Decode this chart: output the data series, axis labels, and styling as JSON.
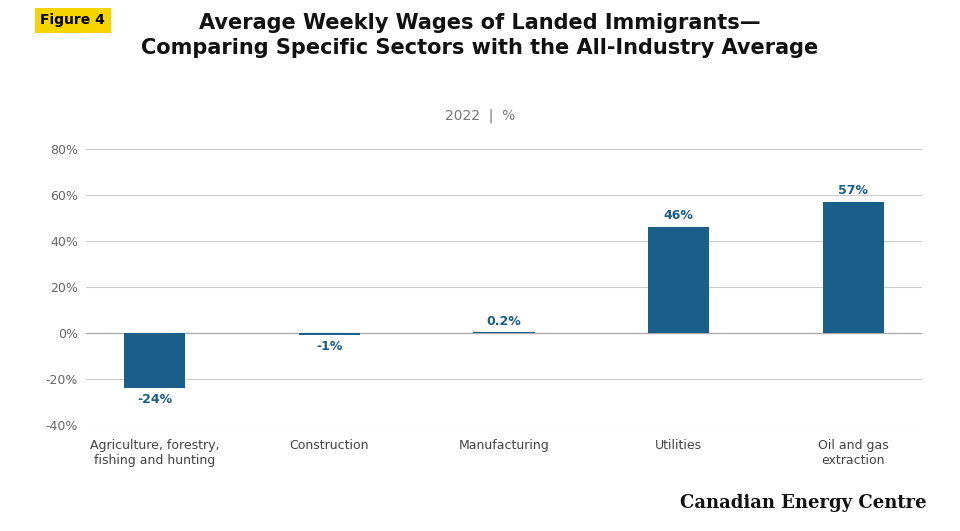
{
  "title_line1": "Average Weekly Wages of Landed Immigrants—",
  "title_line2": "Comparing Specific Sectors with the All-Industry Average",
  "subtitle": "2022  |  %",
  "figure_label": "Figure 4",
  "categories": [
    "Agriculture, forestry,\nfishing and hunting",
    "Construction",
    "Manufacturing",
    "Utilities",
    "Oil and gas\nextraction"
  ],
  "values": [
    -24,
    -1,
    0.2,
    46,
    57
  ],
  "bar_color": "#1a5f8a",
  "label_color": "#1a5f8a",
  "background_color": "#ffffff",
  "ylim": [
    -40,
    80
  ],
  "yticks": [
    -40,
    -20,
    0,
    20,
    40,
    60,
    80
  ],
  "figure_label_bg": "#f5d400",
  "figure_label_color": "#000000",
  "bar_labels": [
    "-24%",
    "-1%",
    "0.2%",
    "46%",
    "57%"
  ],
  "branding": "Canadian Energy Centre",
  "title_fontsize": 15,
  "subtitle_fontsize": 10,
  "label_fontsize": 9,
  "tick_fontsize": 9,
  "bar_width": 0.35
}
